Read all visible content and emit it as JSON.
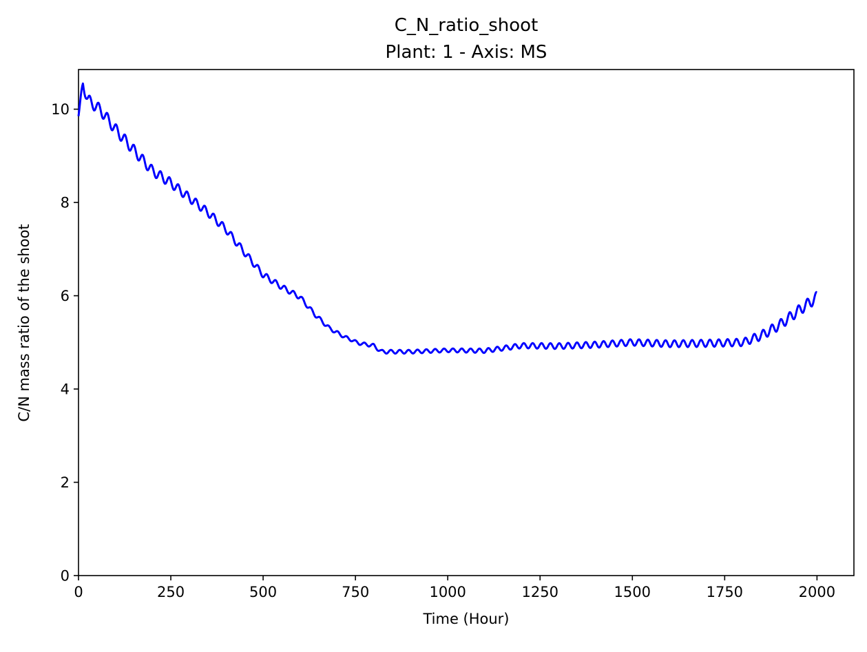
{
  "chart_data": {
    "type": "line",
    "title": "C_N_ratio_shoot",
    "subtitle": "Plant: 1 - Axis: MS",
    "xlabel": "Time (Hour)",
    "ylabel": "C/N mass ratio of the shoot",
    "xlim": [
      0,
      2100
    ],
    "ylim": [
      0,
      10.85
    ],
    "x_ticks": [
      0,
      250,
      500,
      750,
      1000,
      1250,
      1500,
      1750,
      2000
    ],
    "y_ticks": [
      0,
      2,
      4,
      6,
      8,
      10
    ],
    "grid": false,
    "legend": "none",
    "series": [
      {
        "color": "#0000ff",
        "trend": [
          [
            0,
            9.85
          ],
          [
            12,
            10.55
          ],
          [
            25,
            10.2
          ],
          [
            60,
            9.98
          ],
          [
            100,
            9.57
          ],
          [
            150,
            9.12
          ],
          [
            200,
            8.68
          ],
          [
            250,
            8.42
          ],
          [
            300,
            8.1
          ],
          [
            350,
            7.79
          ],
          [
            400,
            7.42
          ],
          [
            430,
            7.12
          ],
          [
            460,
            6.83
          ],
          [
            500,
            6.45
          ],
          [
            550,
            6.19
          ],
          [
            600,
            5.97
          ],
          [
            640,
            5.6
          ],
          [
            680,
            5.3
          ],
          [
            720,
            5.12
          ],
          [
            760,
            4.98
          ],
          [
            800,
            4.93
          ],
          [
            820,
            4.8
          ],
          [
            900,
            4.8
          ],
          [
            1000,
            4.83
          ],
          [
            1100,
            4.82
          ],
          [
            1200,
            4.93
          ],
          [
            1300,
            4.92
          ],
          [
            1400,
            4.95
          ],
          [
            1500,
            5.0
          ],
          [
            1600,
            4.97
          ],
          [
            1700,
            4.98
          ],
          [
            1800,
            5.0
          ],
          [
            1850,
            5.15
          ],
          [
            1900,
            5.38
          ],
          [
            1950,
            5.68
          ],
          [
            2000,
            5.97
          ]
        ],
        "wiggle": [
          [
            0,
            0.0
          ],
          [
            10,
            0.12
          ],
          [
            100,
            0.12
          ],
          [
            400,
            0.08
          ],
          [
            600,
            0.05
          ],
          [
            750,
            0.03
          ],
          [
            820,
            0.04
          ],
          [
            1000,
            0.04
          ],
          [
            1150,
            0.05
          ],
          [
            1250,
            0.06
          ],
          [
            1500,
            0.07
          ],
          [
            1800,
            0.08
          ],
          [
            1850,
            0.1
          ],
          [
            2000,
            0.12
          ]
        ],
        "period_hours": 24
      }
    ]
  }
}
